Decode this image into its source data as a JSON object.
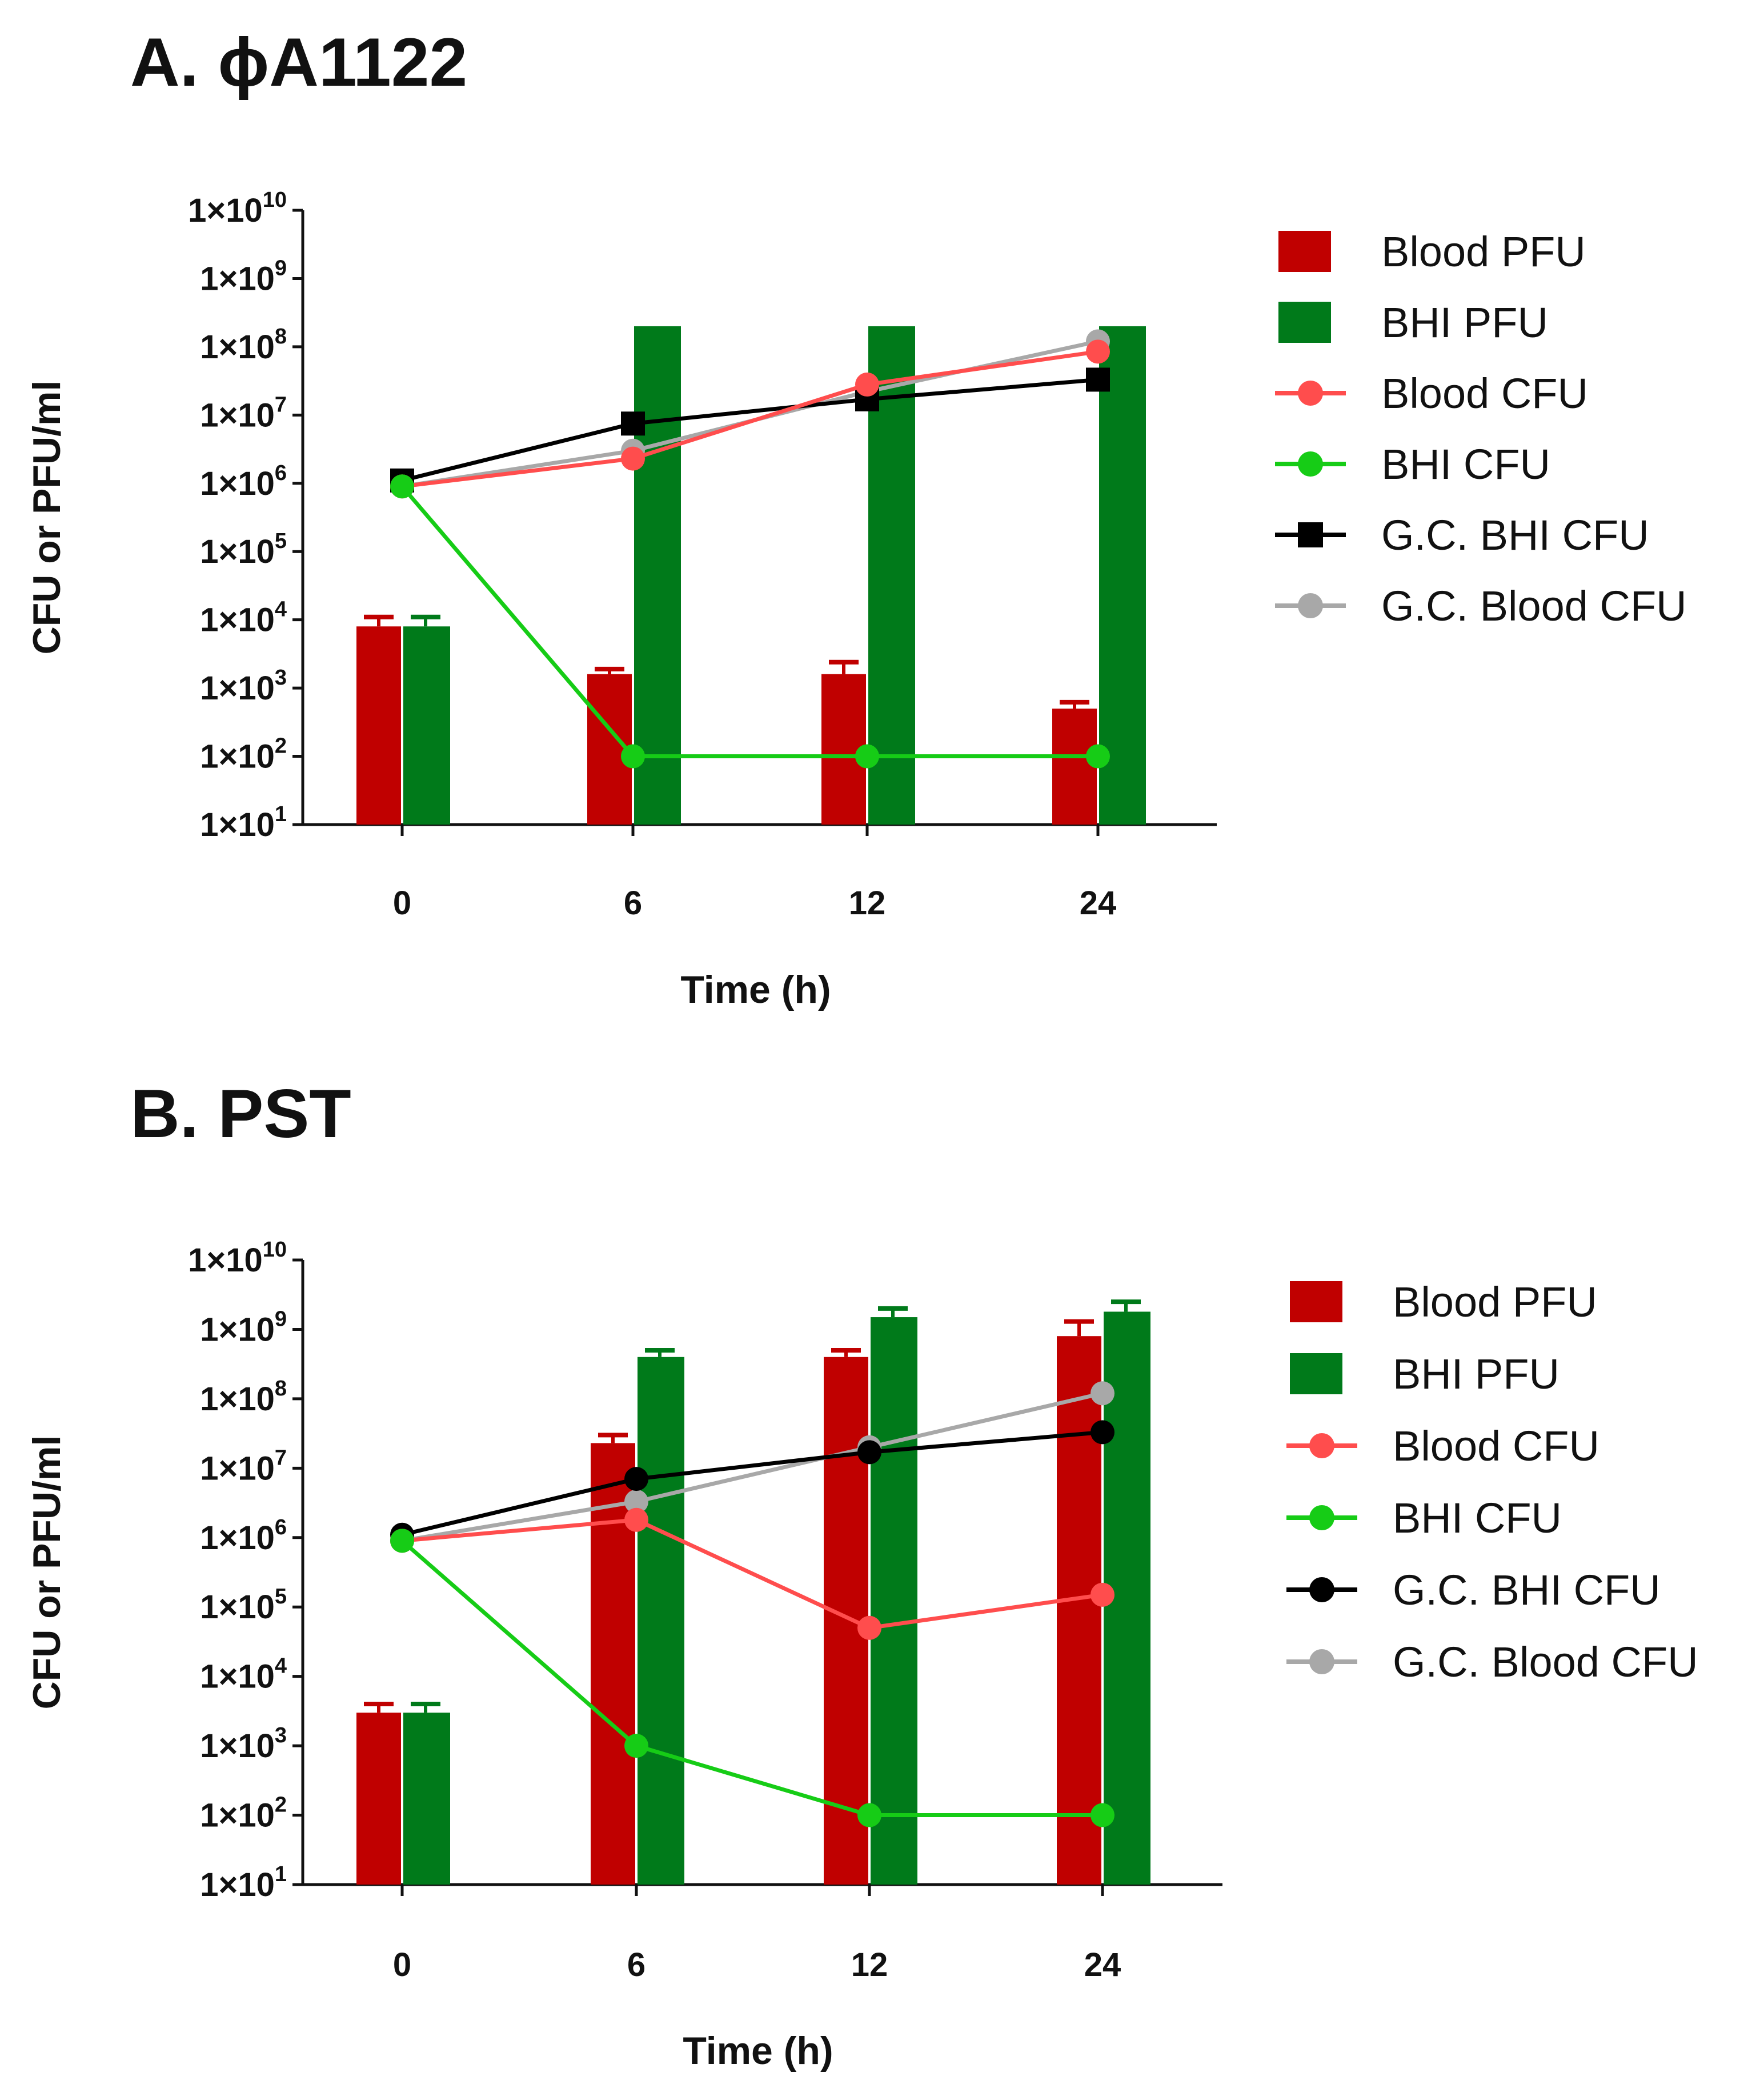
{
  "colors": {
    "blood_pfu": "#C00000",
    "bhi_pfu": "#007A1A",
    "blood_cfu": "#FF4D4D",
    "bhi_cfu": "#16CC16",
    "gc_bhi_cfu": "#000000",
    "gc_blood_cfu": "#A8A8A8"
  },
  "chart_data": [
    {
      "type": "bar",
      "title": "A. ϕA1122",
      "xlabel": "Time (h)",
      "ylabel": "CFU or PFU/ml",
      "yscale": "log",
      "ylim": [
        10,
        10000000000
      ],
      "yticks": [
        {
          "base": "1×10",
          "exp": "1"
        },
        {
          "base": "1×10",
          "exp": "2"
        },
        {
          "base": "1×10",
          "exp": "3"
        },
        {
          "base": "1×10",
          "exp": "4"
        },
        {
          "base": "1×10",
          "exp": "5"
        },
        {
          "base": "1×10",
          "exp": "6"
        },
        {
          "base": "1×10",
          "exp": "7"
        },
        {
          "base": "1×10",
          "exp": "8"
        },
        {
          "base": "1×10",
          "exp": "9"
        },
        {
          "base": "1×10",
          "exp": "10"
        }
      ],
      "categories": [
        "0",
        "6",
        "12",
        "24"
      ],
      "bars": [
        {
          "name": "Blood PFU",
          "color_key": "blood_pfu",
          "values": [
            8000,
            1600,
            1600,
            500
          ],
          "errors": [
            11000,
            1900,
            2400,
            620
          ]
        },
        {
          "name": "BHI PFU",
          "color_key": "bhi_pfu",
          "values": [
            8000,
            200000000,
            200000000,
            200000000
          ],
          "errors": [
            11000,
            null,
            null,
            null
          ]
        }
      ],
      "lines": [
        {
          "name": "Blood CFU",
          "color_key": "blood_cfu",
          "marker": "circle",
          "values": [
            900000,
            2300000,
            28000000,
            85000000
          ]
        },
        {
          "name": "BHI CFU",
          "color_key": "bhi_cfu",
          "marker": "circle",
          "values": [
            900000,
            100,
            100,
            100
          ]
        },
        {
          "name": "G.C. BHI CFU",
          "color_key": "gc_bhi_cfu",
          "marker": "square",
          "values": [
            1100000,
            7500000,
            17000000,
            33000000
          ]
        },
        {
          "name": "G.C. Blood CFU",
          "color_key": "gc_blood_cfu",
          "marker": "circle",
          "values": [
            900000,
            3000000,
            22000000,
            120000000
          ]
        }
      ],
      "legend": [
        "Blood PFU",
        "BHI PFU",
        "Blood CFU",
        "BHI CFU",
        "G.C. BHI CFU",
        "G.C. Blood CFU"
      ],
      "legend_position": "right"
    },
    {
      "type": "bar",
      "title": "B. PST",
      "xlabel": "Time (h)",
      "ylabel": "CFU or PFU/ml",
      "yscale": "log",
      "ylim": [
        10,
        10000000000
      ],
      "yticks": [
        {
          "base": "1×10",
          "exp": "1"
        },
        {
          "base": "1×10",
          "exp": "2"
        },
        {
          "base": "1×10",
          "exp": "3"
        },
        {
          "base": "1×10",
          "exp": "4"
        },
        {
          "base": "1×10",
          "exp": "5"
        },
        {
          "base": "1×10",
          "exp": "6"
        },
        {
          "base": "1×10",
          "exp": "7"
        },
        {
          "base": "1×10",
          "exp": "8"
        },
        {
          "base": "1×10",
          "exp": "9"
        },
        {
          "base": "1×10",
          "exp": "10"
        }
      ],
      "categories": [
        "0",
        "6",
        "12",
        "24"
      ],
      "bars": [
        {
          "name": "Blood PFU",
          "color_key": "blood_pfu",
          "values": [
            3000,
            23000000,
            400000000,
            800000000
          ],
          "errors": [
            4000,
            30000000,
            500000000,
            1300000000
          ]
        },
        {
          "name": "BHI PFU",
          "color_key": "bhi_pfu",
          "values": [
            3000,
            400000000,
            1500000000,
            1800000000
          ],
          "errors": [
            4000,
            500000000,
            2000000000,
            2500000000
          ]
        }
      ],
      "lines": [
        {
          "name": "Blood CFU",
          "color_key": "blood_cfu",
          "marker": "circle",
          "values": [
            900000,
            1800000,
            50000,
            150000
          ]
        },
        {
          "name": "BHI CFU",
          "color_key": "bhi_cfu",
          "marker": "circle",
          "values": [
            900000,
            1000,
            100,
            100
          ]
        },
        {
          "name": "G.C. BHI CFU",
          "color_key": "gc_bhi_cfu",
          "marker": "circle",
          "values": [
            1100000,
            7000000,
            17000000,
            33000000
          ]
        },
        {
          "name": "G.C. Blood CFU",
          "color_key": "gc_blood_cfu",
          "marker": "circle",
          "values": [
            900000,
            3300000,
            20000000,
            120000000
          ]
        }
      ],
      "legend": [
        "Blood PFU",
        "BHI PFU",
        "Blood CFU",
        "BHI CFU",
        "G.C. BHI CFU",
        "G.C. Blood CFU"
      ],
      "legend_position": "right"
    }
  ]
}
